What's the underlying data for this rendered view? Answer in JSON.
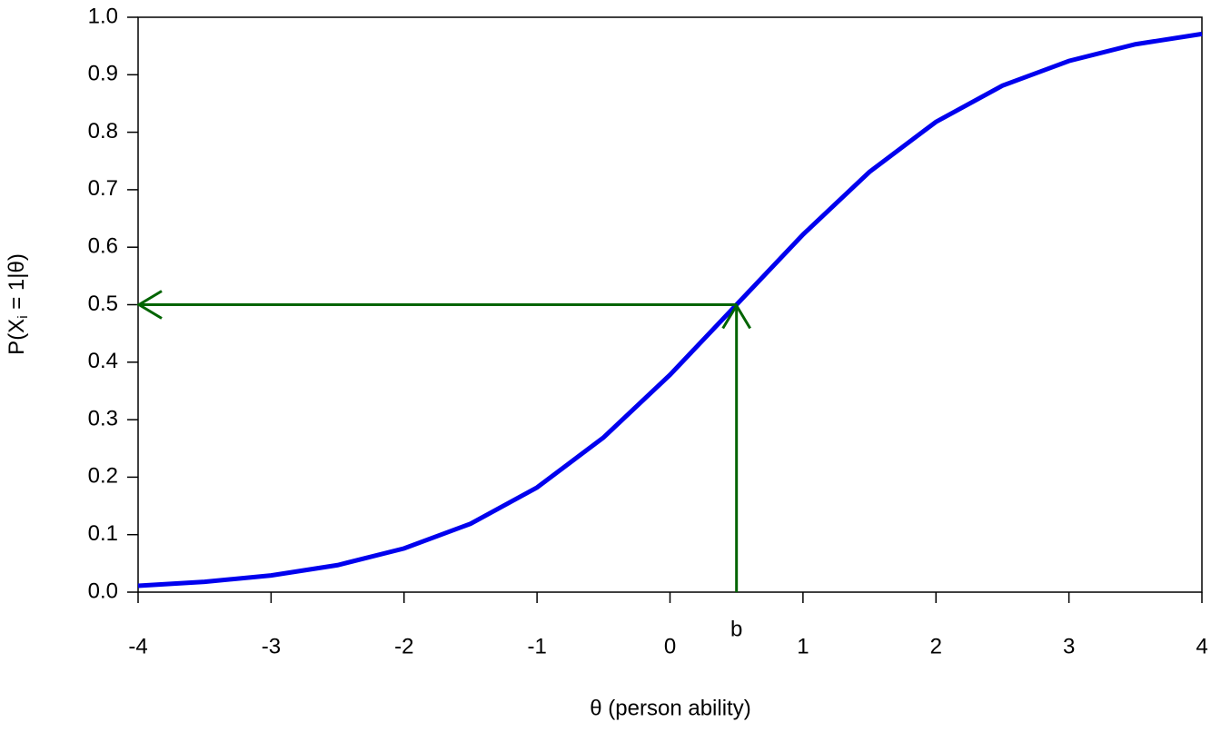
{
  "chart_data": {
    "type": "line",
    "xlabel": "θ (person ability)",
    "ylabel_parts": [
      "P(X",
      "i",
      " = 1|θ)"
    ],
    "x": [
      -4,
      -3.5,
      -3,
      -2.5,
      -2,
      -1.5,
      -1,
      -0.5,
      0,
      0.5,
      1,
      1.5,
      2,
      2.5,
      3,
      3.5,
      4
    ],
    "values": [
      0.011,
      0.018,
      0.029,
      0.047,
      0.076,
      0.119,
      0.182,
      0.269,
      0.378,
      0.5,
      0.622,
      0.731,
      0.818,
      0.881,
      0.924,
      0.953,
      0.971
    ],
    "color": "#0000ee",
    "xlim": [
      -4,
      4
    ],
    "ylim": [
      0,
      1
    ],
    "xticks": [
      -4,
      -3,
      -2,
      -1,
      0,
      1,
      2,
      3,
      4
    ],
    "yticks": [
      {
        "value": 0,
        "label": "0.0"
      },
      0.1,
      0.2,
      0.3,
      0.4,
      0.5,
      0.6,
      0.7,
      0.8,
      0.9,
      {
        "value": 1,
        "label": "1.0"
      }
    ],
    "annotation": {
      "label": "b",
      "x": 0.5,
      "y": 0.5,
      "color": "#006400"
    }
  }
}
